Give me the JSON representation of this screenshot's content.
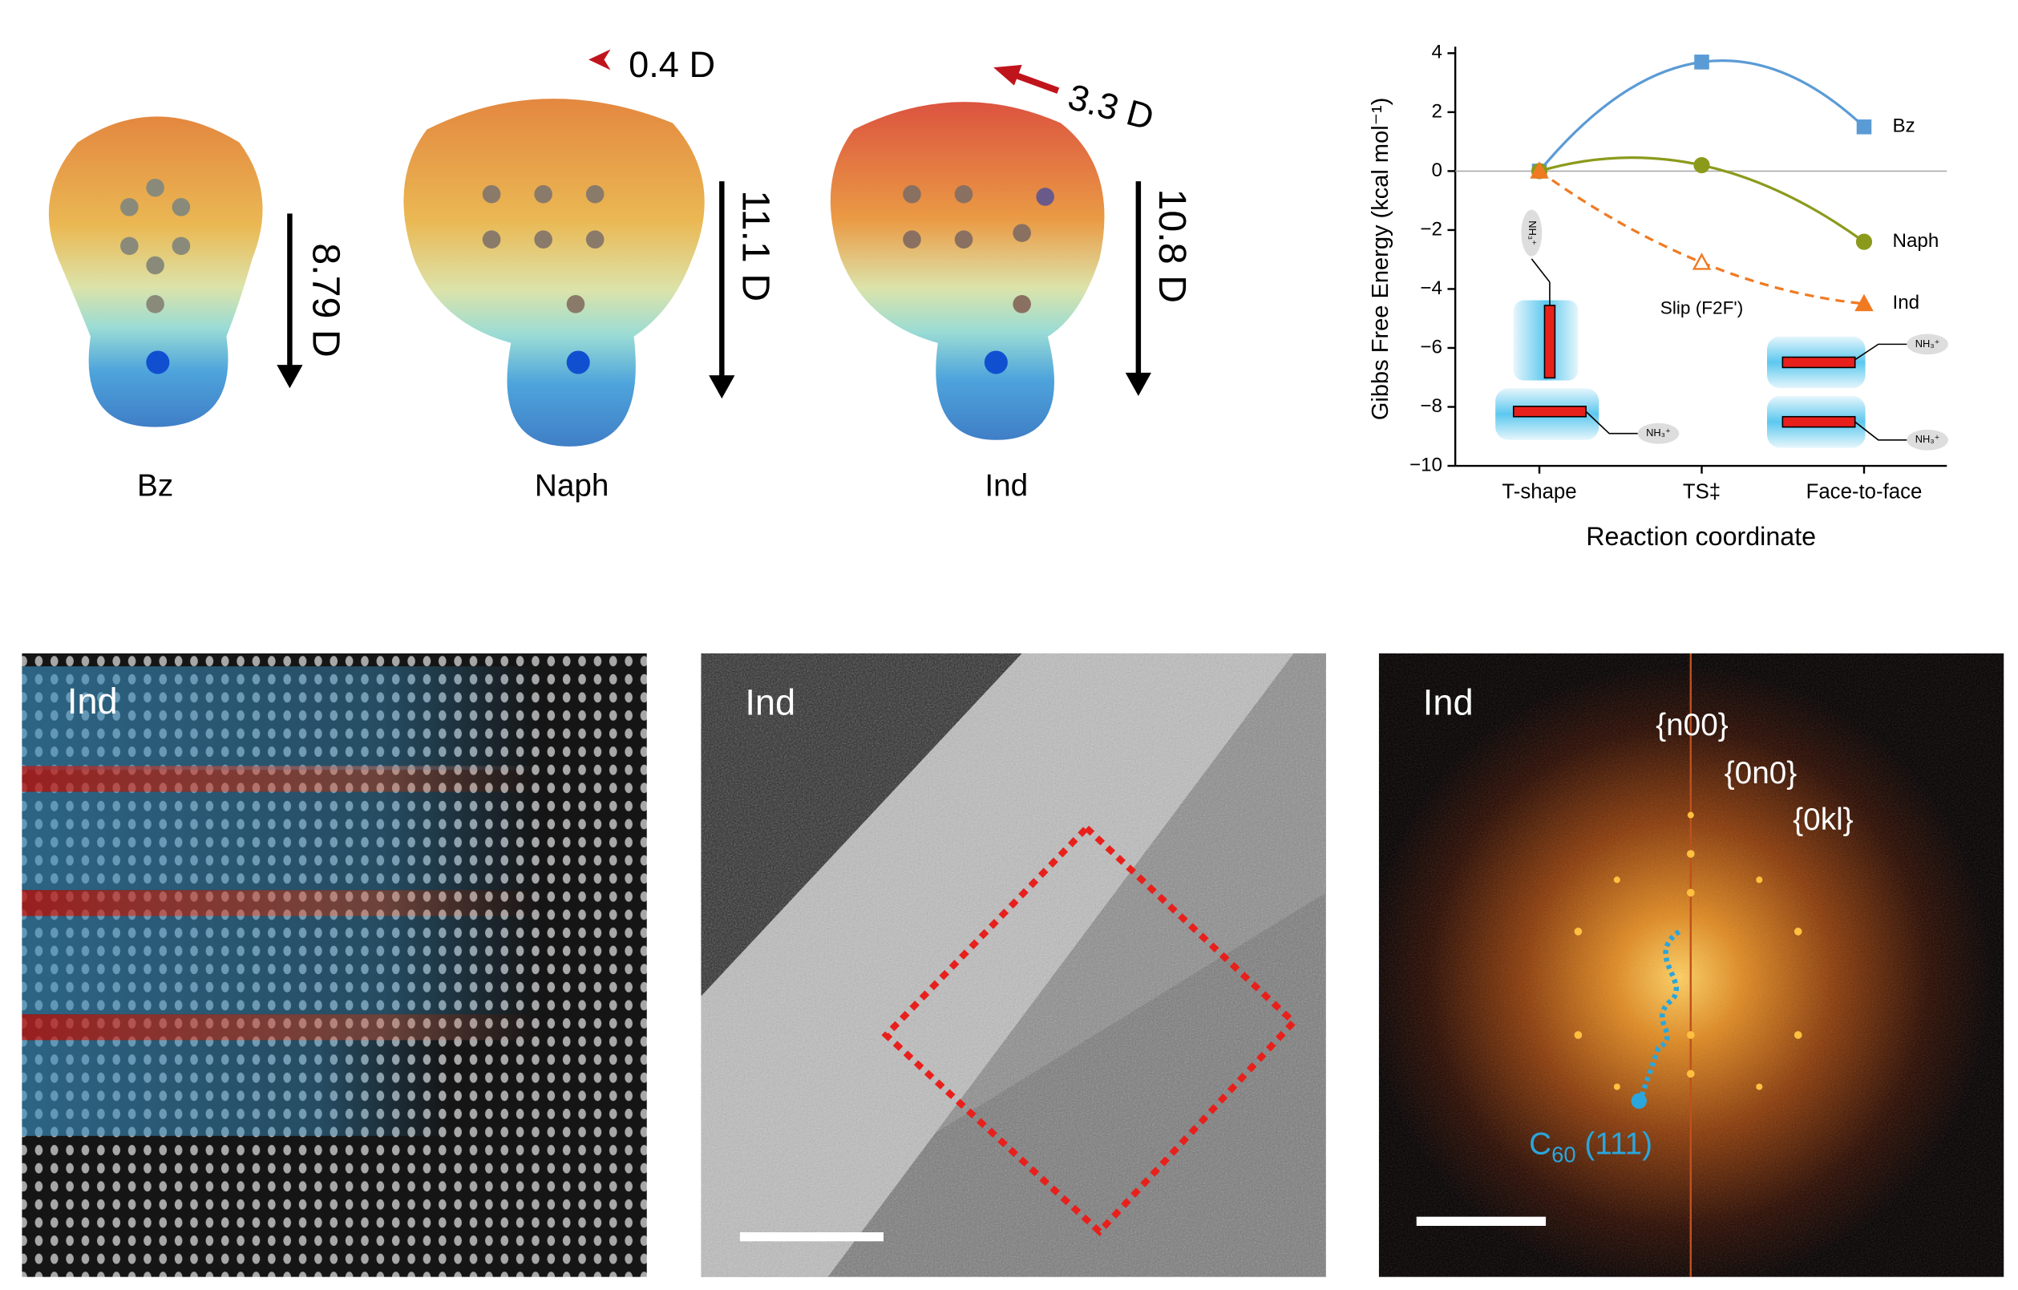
{
  "molecules": [
    {
      "label": "Bz",
      "dipole": "8.79 D"
    },
    {
      "label": "Naph",
      "dipole": "11.1 D",
      "secondary_dipole": "0.4 D"
    },
    {
      "label": "Ind",
      "dipole": "10.8 D",
      "secondary_dipole": "3.3 D"
    }
  ],
  "chart_data": {
    "type": "line",
    "y_label": "Gibbs Free Energy (kcal mol⁻¹)",
    "x_label": "Reaction coordinate",
    "categories": [
      "T-shape",
      "TS‡",
      "Face-to-face"
    ],
    "series": [
      {
        "name": "Bz",
        "color": "#5b9bd5",
        "marker": "square",
        "values": [
          0,
          3.7,
          1.5
        ]
      },
      {
        "name": "Naph",
        "color": "#8c9a1c",
        "marker": "circle",
        "values": [
          0,
          0.2,
          -2.4
        ]
      },
      {
        "name": "Ind",
        "color": "#f07a22",
        "marker": "triangle",
        "dashed": true,
        "filled": [
          true,
          false,
          true
        ],
        "values": [
          0,
          -3.1,
          -4.5
        ]
      }
    ],
    "annotation": "Slip (F2F')",
    "inset_label": "NH₃⁺",
    "ylim": [
      -10,
      4
    ],
    "yticks": [
      {
        "value": -10,
        "label": "−10"
      },
      {
        "value": -8,
        "label": "−8"
      },
      {
        "value": -6,
        "label": "−6"
      },
      {
        "value": -4,
        "label": "−4"
      },
      {
        "value": -2,
        "label": "−2"
      },
      0,
      2,
      4
    ],
    "zero_line": true
  },
  "images": [
    {
      "label": "Ind"
    },
    {
      "label": "Ind"
    },
    {
      "label": "Ind",
      "annotations": [
        "{n00}",
        "{0n0}",
        "{0kl}"
      ],
      "spot_label": {
        "base": "C",
        "subscript": "60",
        "suffix": " (111)"
      }
    }
  ]
}
